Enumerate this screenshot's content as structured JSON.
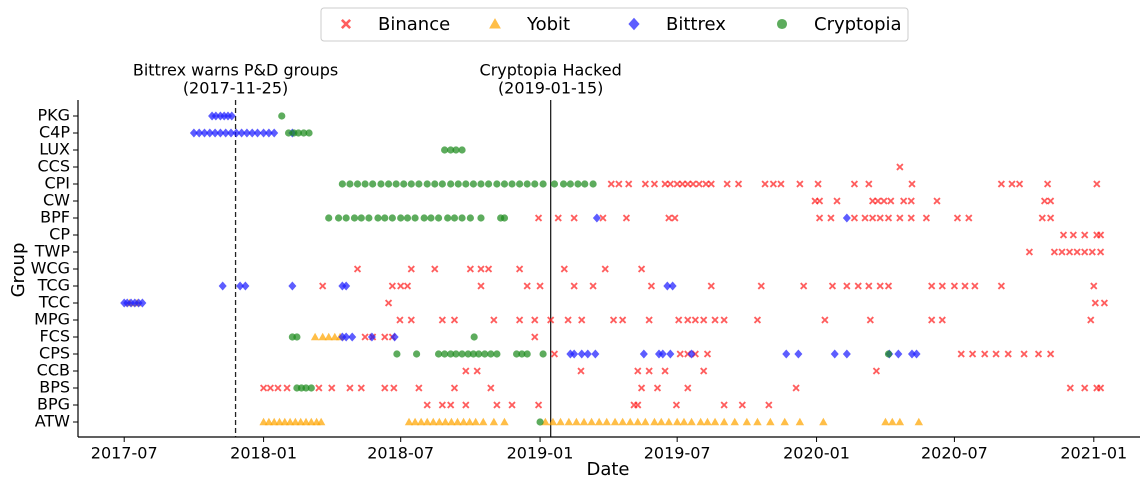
{
  "chart_data": {
    "type": "scatter",
    "xlabel": "Date",
    "ylabel": "Group",
    "categories": [
      "PKG",
      "C4P",
      "LUX",
      "CCS",
      "CPI",
      "CW",
      "BPF",
      "CP",
      "TWP",
      "WCG",
      "TCG",
      "TCC",
      "MPG",
      "FCS",
      "CPS",
      "CCB",
      "BPS",
      "BPG",
      "ATW"
    ],
    "xlim": [
      "2017-05-01",
      "2021-03-03"
    ],
    "xticks": [
      {
        "value": "2017-07-01",
        "label": "2017-07"
      },
      {
        "value": "2018-01-01",
        "label": "2018-01"
      },
      {
        "value": "2018-07-01",
        "label": "2018-07"
      },
      {
        "value": "2019-01-01",
        "label": "2019-01"
      },
      {
        "value": "2019-07-01",
        "label": "2019-07"
      },
      {
        "value": "2020-01-01",
        "label": "2020-01"
      },
      {
        "value": "2020-07-01",
        "label": "2020-07"
      },
      {
        "value": "2021-01-01",
        "label": "2021-01"
      }
    ],
    "legend": "upper center",
    "annotations": [
      {
        "x": "2017-11-25",
        "text": "Bittrex warns P&D groups",
        "date_label": "(2017-11-25)",
        "linestyle": "dashed"
      },
      {
        "x": "2019-01-15",
        "text": "Cryptopia Hacked",
        "date_label": "(2019-01-15)",
        "linestyle": "solid"
      }
    ],
    "series": [
      {
        "name": "Binance",
        "color": "#ff2020",
        "marker": "X",
        "points": [
          {
            "y": "CCS",
            "x": [
              "2020-04-20"
            ]
          },
          {
            "y": "CPI",
            "x": [
              "2019-04-05",
              "2019-04-15",
              "2019-04-28",
              "2019-05-20",
              "2019-06-01",
              "2019-06-15",
              "2019-06-22",
              "2019-07-01",
              "2019-07-08",
              "2019-07-15",
              "2019-07-22",
              "2019-07-30",
              "2019-08-08",
              "2019-08-15",
              "2019-09-05",
              "2019-09-20",
              "2019-10-25",
              "2019-11-05",
              "2019-11-15",
              "2019-12-10",
              "2020-01-03",
              "2020-02-20",
              "2020-03-10",
              "2020-05-06",
              "2020-09-01",
              "2020-09-15",
              "2020-09-25",
              "2020-11-01",
              "2021-01-05"
            ]
          },
          {
            "y": "CW",
            "x": [
              "2019-12-30",
              "2020-01-05",
              "2020-01-28",
              "2020-03-15",
              "2020-03-22",
              "2020-03-30",
              "2020-04-08",
              "2020-04-25",
              "2020-05-05",
              "2020-06-08",
              "2020-10-28",
              "2020-11-05"
            ]
          },
          {
            "y": "BPF",
            "x": [
              "2018-12-30",
              "2019-01-25",
              "2019-02-15",
              "2019-03-25",
              "2019-04-25",
              "2019-06-20",
              "2019-06-28",
              "2020-01-05",
              "2020-01-20",
              "2020-02-20",
              "2020-03-05",
              "2020-03-15",
              "2020-03-25",
              "2020-04-05",
              "2020-04-20",
              "2020-05-05",
              "2020-05-25",
              "2020-07-05",
              "2020-07-20",
              "2020-10-25",
              "2020-11-05"
            ]
          },
          {
            "y": "CP",
            "x": [
              "2020-11-22",
              "2020-12-05",
              "2020-12-20",
              "2021-01-05",
              "2021-01-10"
            ]
          },
          {
            "y": "TWP",
            "x": [
              "2020-10-08",
              "2020-11-10",
              "2020-11-20",
              "2020-11-30",
              "2020-12-10",
              "2020-12-20",
              "2020-12-30",
              "2021-01-10"
            ]
          },
          {
            "y": "WCG",
            "x": [
              "2018-05-05",
              "2018-07-15",
              "2018-08-15",
              "2018-10-01",
              "2018-10-15",
              "2018-10-25",
              "2018-12-05",
              "2019-02-02",
              "2019-03-28",
              "2019-05-15"
            ]
          },
          {
            "y": "TCG",
            "x": [
              "2018-03-20",
              "2018-06-20",
              "2018-07-01",
              "2018-07-10",
              "2018-10-15",
              "2018-12-15",
              "2019-01-01",
              "2019-02-15",
              "2019-03-12",
              "2019-05-28",
              "2019-08-15",
              "2019-10-20",
              "2019-12-15",
              "2020-01-22",
              "2020-02-10",
              "2020-02-25",
              "2020-03-10",
              "2020-03-25",
              "2020-04-05",
              "2020-06-01",
              "2020-06-15",
              "2020-07-01",
              "2020-07-15",
              "2020-07-28",
              "2020-09-01",
              "2021-01-01"
            ]
          },
          {
            "y": "TCC",
            "x": [
              "2018-06-15",
              "2021-01-03",
              "2021-01-15"
            ]
          },
          {
            "y": "MPG",
            "x": [
              "2018-06-30",
              "2018-07-15",
              "2018-08-25",
              "2018-09-10",
              "2018-11-01",
              "2018-12-05",
              "2018-12-25",
              "2019-01-15",
              "2019-02-07",
              "2019-02-25",
              "2019-04-08",
              "2019-04-20",
              "2019-05-25",
              "2019-07-03",
              "2019-07-15",
              "2019-07-25",
              "2019-08-05",
              "2019-08-20",
              "2019-09-01",
              "2019-10-15",
              "2020-01-12",
              "2020-03-12",
              "2020-06-01",
              "2020-06-15",
              "2020-12-28"
            ]
          },
          {
            "y": "FCS",
            "x": [
              "2018-05-15",
              "2018-05-25",
              "2018-06-10",
              "2018-06-20",
              "2018-12-25"
            ]
          },
          {
            "y": "CPS",
            "x": [
              "2019-01-20",
              "2019-07-05",
              "2019-07-15",
              "2019-07-25",
              "2019-08-10",
              "2020-07-10",
              "2020-07-25",
              "2020-08-10",
              "2020-08-25",
              "2020-09-10",
              "2020-10-01",
              "2020-10-20",
              "2020-11-05"
            ]
          },
          {
            "y": "CCB",
            "x": [
              "2018-09-25",
              "2018-10-10",
              "2019-02-24",
              "2019-05-10",
              "2019-05-25",
              "2019-06-15",
              "2019-08-05",
              "2020-03-20"
            ]
          },
          {
            "y": "BPS",
            "x": [
              "2018-01-01",
              "2018-01-10",
              "2018-01-20",
              "2018-02-01",
              "2018-03-15",
              "2018-04-01",
              "2018-04-25",
              "2018-05-10",
              "2018-06-10",
              "2018-06-22",
              "2018-07-25",
              "2018-09-10",
              "2018-10-28",
              "2019-05-15",
              "2019-06-05",
              "2019-07-15",
              "2019-12-05",
              "2020-12-01",
              "2020-12-20",
              "2021-01-05",
              "2021-01-10"
            ]
          },
          {
            "y": "BPG",
            "x": [
              "2018-08-05",
              "2018-08-25",
              "2018-09-05",
              "2018-09-25",
              "2018-11-05",
              "2018-11-25",
              "2018-12-30",
              "2019-05-05",
              "2019-05-10",
              "2019-06-30",
              "2019-09-01",
              "2019-09-25",
              "2019-10-30"
            ]
          }
        ]
      },
      {
        "name": "Yobit",
        "color": "#ffa500",
        "marker": "^",
        "points": [
          {
            "y": "TCC",
            "x": [
              "2017-07-08",
              "2017-07-18"
            ]
          },
          {
            "y": "FCS",
            "x": [
              "2018-03-10",
              "2018-03-20",
              "2018-03-28",
              "2018-04-05",
              "2018-04-12"
            ]
          },
          {
            "y": "ATW",
            "x": [
              "2018-01-01",
              "2018-01-08",
              "2018-01-15",
              "2018-01-22",
              "2018-01-29",
              "2018-02-05",
              "2018-02-12",
              "2018-02-19",
              "2018-02-26",
              "2018-03-05",
              "2018-03-12",
              "2018-03-18",
              "2018-07-12",
              "2018-07-20",
              "2018-07-28",
              "2018-08-05",
              "2018-08-13",
              "2018-08-21",
              "2018-08-29",
              "2018-09-06",
              "2018-09-14",
              "2018-09-22",
              "2018-09-30",
              "2018-10-08",
              "2018-10-18",
              "2018-11-01",
              "2018-11-15",
              "2019-01-08",
              "2019-01-18",
              "2019-01-28",
              "2019-02-08",
              "2019-02-18",
              "2019-02-28",
              "2019-03-10",
              "2019-03-20",
              "2019-03-30",
              "2019-04-10",
              "2019-04-20",
              "2019-04-30",
              "2019-05-10",
              "2019-05-20",
              "2019-06-01",
              "2019-06-10",
              "2019-06-20",
              "2019-07-01",
              "2019-07-10",
              "2019-07-20",
              "2019-08-01",
              "2019-08-10",
              "2019-08-20",
              "2019-09-01",
              "2019-09-15",
              "2019-10-01",
              "2019-10-15",
              "2019-11-01",
              "2019-11-20",
              "2019-12-10",
              "2020-01-10",
              "2020-04-01",
              "2020-04-10",
              "2020-04-20",
              "2020-05-15"
            ]
          }
        ]
      },
      {
        "name": "Bittrex",
        "color": "#1f1fff",
        "marker": "D",
        "points": [
          {
            "y": "PKG",
            "x": [
              "2017-10-25",
              "2017-10-30",
              "2017-11-05",
              "2017-11-10",
              "2017-11-15",
              "2017-11-20"
            ]
          },
          {
            "y": "C4P",
            "x": [
              "2017-10-01",
              "2017-10-08",
              "2017-10-15",
              "2017-10-22",
              "2017-10-29",
              "2017-11-05",
              "2017-11-12",
              "2017-11-19",
              "2017-11-26",
              "2017-12-03",
              "2017-12-10",
              "2017-12-17",
              "2017-12-24",
              "2018-01-01",
              "2018-01-08",
              "2018-01-15",
              "2018-02-08"
            ]
          },
          {
            "y": "TCG",
            "x": [
              "2017-11-08",
              "2017-12-01",
              "2017-12-08",
              "2018-02-08",
              "2018-04-15",
              "2018-04-20",
              "2019-06-18",
              "2019-06-25"
            ]
          },
          {
            "y": "TCC",
            "x": [
              "2017-07-01",
              "2017-07-05",
              "2017-07-10",
              "2017-07-15",
              "2017-07-20",
              "2017-07-25"
            ]
          },
          {
            "y": "FCS",
            "x": [
              "2018-04-15",
              "2018-04-20",
              "2018-04-28",
              "2018-05-24",
              "2018-06-23"
            ]
          },
          {
            "y": "BPF",
            "x": [
              "2019-03-17",
              "2020-02-10"
            ]
          },
          {
            "y": "CPS",
            "x": [
              "2019-02-10",
              "2019-02-15",
              "2019-02-25",
              "2019-03-05",
              "2019-03-15",
              "2019-05-18",
              "2019-06-07",
              "2019-06-12",
              "2019-06-22",
              "2019-07-20",
              "2019-11-22",
              "2019-12-08",
              "2020-01-25",
              "2020-02-10",
              "2020-04-06",
              "2020-04-18",
              "2020-05-06",
              "2020-05-12"
            ]
          }
        ]
      },
      {
        "name": "Cryptopia",
        "color": "#1e8c1e",
        "marker": "o",
        "points": [
          {
            "y": "PKG",
            "x": [
              "2018-01-25"
            ]
          },
          {
            "y": "C4P",
            "x": [
              "2018-02-03",
              "2018-02-10",
              "2018-02-16",
              "2018-02-23",
              "2018-03-02"
            ]
          },
          {
            "y": "LUX",
            "x": [
              "2018-08-28",
              "2018-09-05",
              "2018-09-12",
              "2018-09-20"
            ]
          },
          {
            "y": "CPI",
            "x": [
              "2018-04-15",
              "2018-04-25",
              "2018-05-05",
              "2018-05-15",
              "2018-05-25",
              "2018-06-05",
              "2018-06-15",
              "2018-06-25",
              "2018-07-05",
              "2018-07-15",
              "2018-07-25",
              "2018-08-05",
              "2018-08-15",
              "2018-08-25",
              "2018-09-05",
              "2018-09-15",
              "2018-09-25",
              "2018-10-05",
              "2018-10-15",
              "2018-10-25",
              "2018-11-05",
              "2018-11-15",
              "2018-11-25",
              "2018-12-05",
              "2018-12-15",
              "2018-12-25",
              "2019-01-05",
              "2019-01-20",
              "2019-02-01",
              "2019-02-10",
              "2019-02-20",
              "2019-03-01",
              "2019-03-12"
            ]
          },
          {
            "y": "BPF",
            "x": [
              "2018-03-28",
              "2018-04-10",
              "2018-04-20",
              "2018-05-01",
              "2018-05-10",
              "2018-05-20",
              "2018-06-01",
              "2018-06-10",
              "2018-06-20",
              "2018-07-01",
              "2018-07-10",
              "2018-07-20",
              "2018-08-01",
              "2018-08-10",
              "2018-08-20",
              "2018-09-01",
              "2018-09-10",
              "2018-09-20",
              "2018-10-01",
              "2018-10-15",
              "2018-11-10",
              "2018-11-15"
            ]
          },
          {
            "y": "FCS",
            "x": [
              "2018-02-08",
              "2018-02-14",
              "2018-10-06"
            ]
          },
          {
            "y": "CPS",
            "x": [
              "2018-06-26",
              "2018-07-22",
              "2018-08-20",
              "2018-08-28",
              "2018-09-05",
              "2018-09-12",
              "2018-09-20",
              "2018-09-28",
              "2018-10-05",
              "2018-10-12",
              "2018-10-20",
              "2018-10-28",
              "2018-11-05",
              "2018-12-01",
              "2018-12-08",
              "2018-12-15",
              "2019-01-05",
              "2020-04-05"
            ]
          },
          {
            "y": "BPS",
            "x": [
              "2018-02-14",
              "2018-02-20",
              "2018-02-26",
              "2018-03-05"
            ]
          },
          {
            "y": "ATW",
            "x": [
              "2019-01-01"
            ]
          }
        ]
      }
    ]
  }
}
